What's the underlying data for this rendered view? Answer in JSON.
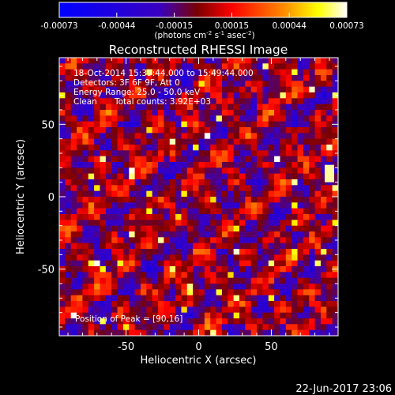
{
  "colorbar": {
    "ticks": [
      "-0.00073",
      "-0.00044",
      "-0.00015",
      "0.00015",
      "0.00044",
      "0.00073"
    ],
    "unit_parts": {
      "a": "(photons cm",
      "b": "-2",
      "c": " s",
      "d": "-1",
      "e": " asec",
      "f": "-2",
      "g": ")"
    }
  },
  "chart_data": {
    "type": "heatmap",
    "title": "Reconstructed RHESSI Image",
    "xlabel": "Heliocentric X (arcsec)",
    "ylabel": "Heliocentric Y (arcsec)",
    "xlim": [
      -96,
      96
    ],
    "ylim": [
      -96,
      96
    ],
    "xticks": [
      -50,
      0,
      50
    ],
    "yticks": [
      50,
      0,
      -50
    ],
    "color_range": [
      -0.00073,
      0.00073
    ],
    "colormap": [
      "#0000ff",
      "#3a00c0",
      "#7a0000",
      "#ff0000",
      "#ff8a00",
      "#ffff00",
      "#ffffff"
    ],
    "annotations": {
      "time": "18-Oct-2014 15:39:44.000 to 15:49:44.000",
      "detectors": "Detectors: 3F 6F 9F, Att 0",
      "energy": "Energy Range: 25.0 - 50.0 keV",
      "clean_label": "Clean",
      "total_counts": "Total counts: 3.92E+03",
      "peak": "Position of Peak = [90,16]"
    },
    "peak_position": [
      90,
      16
    ]
  },
  "footer": {
    "date": "22-Jun-2017 23:06"
  }
}
